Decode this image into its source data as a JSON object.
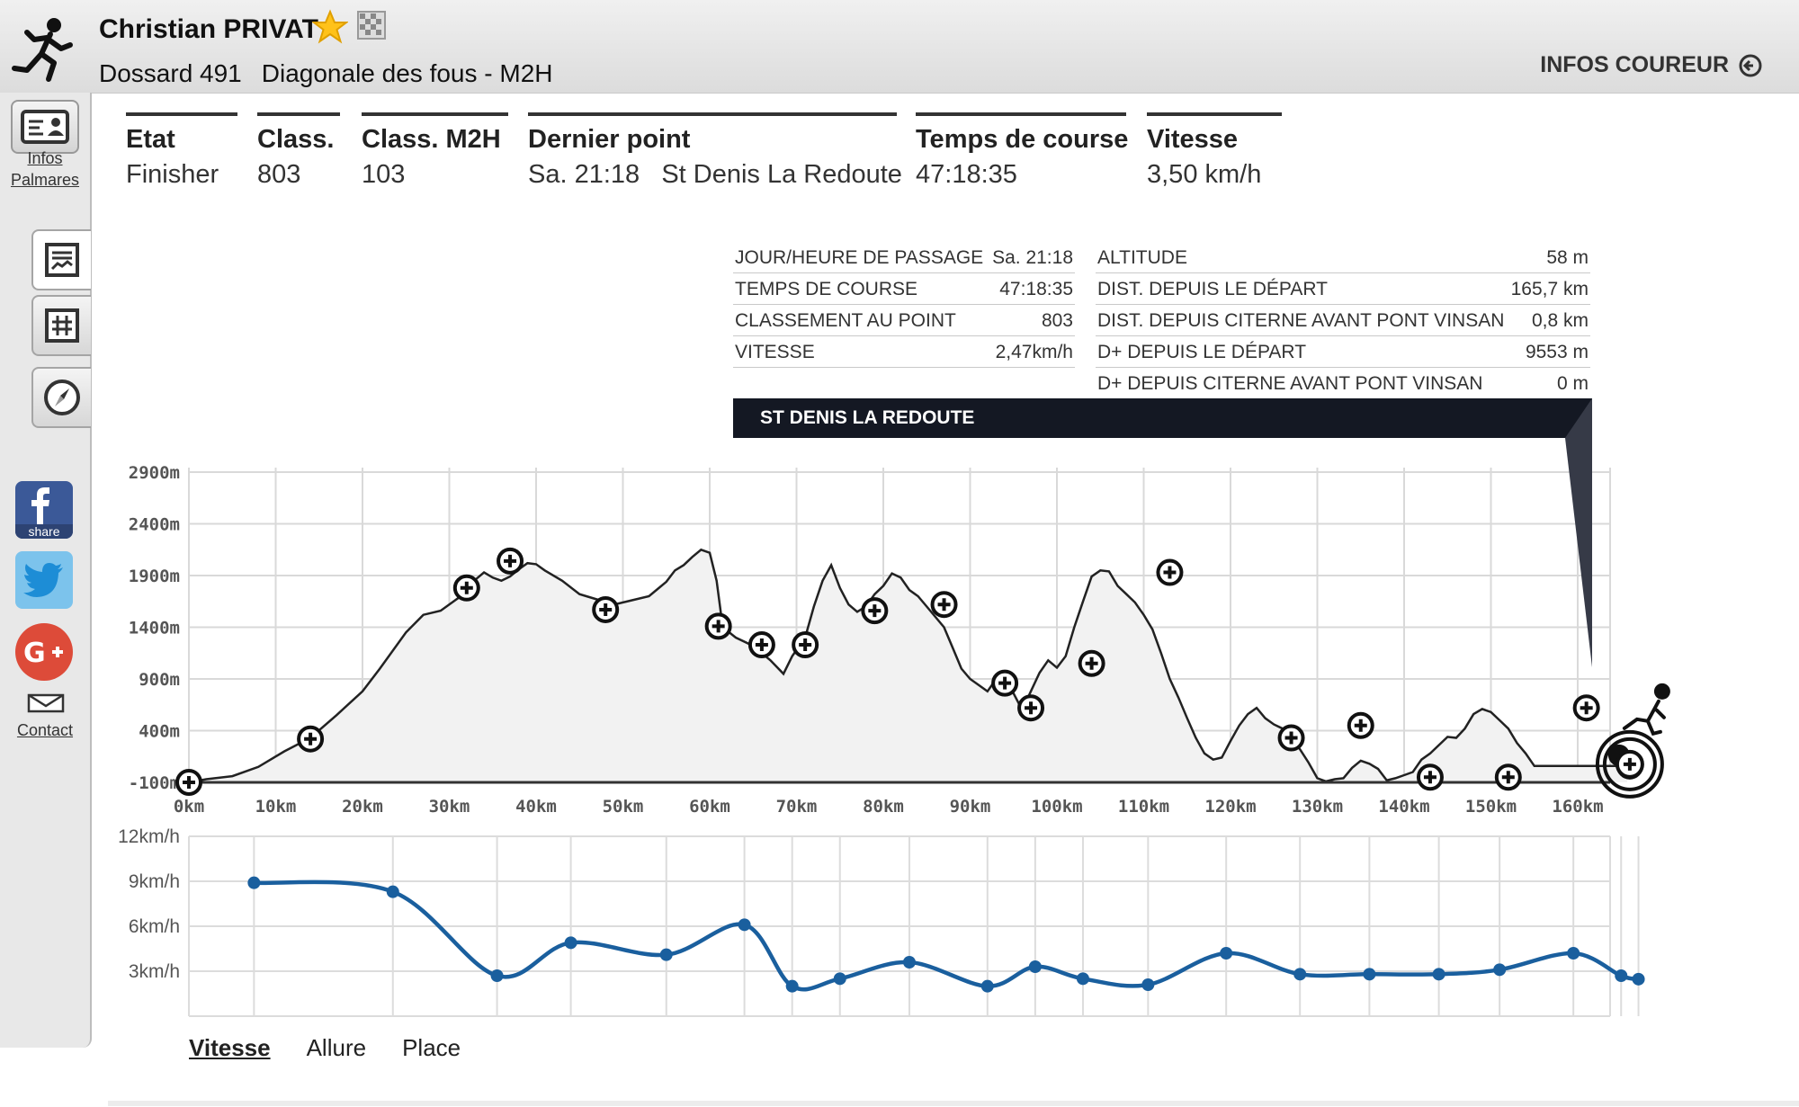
{
  "header": {
    "runner_name": "Christian PRIVAT",
    "bib": "Dossard 491",
    "race": "Diagonale des fous - M2H",
    "infos_coureur": "INFOS COUREUR"
  },
  "sidebar": {
    "infos_label": "Infos",
    "palmares_label": "Palmares",
    "contact_label": "Contact",
    "share_label": "share",
    "icons": [
      "id-card-icon",
      "profile-chart-icon",
      "grid-icon",
      "compass-icon",
      "facebook-icon",
      "twitter-icon",
      "google-plus-icon",
      "mail-icon"
    ]
  },
  "stats": [
    {
      "label": "Etat",
      "value": "Finisher"
    },
    {
      "label": "Class.",
      "value": "803"
    },
    {
      "label": "Class. M2H",
      "value": "103"
    },
    {
      "label": "Dernier point",
      "value": "Sa. 21:18   St Denis La Redoute"
    },
    {
      "label": "Temps de course",
      "value": "47:18:35"
    },
    {
      "label": "Vitesse",
      "value": "3,50 km/h"
    }
  ],
  "point_info": {
    "left": [
      {
        "label": "JOUR/HEURE DE PASSAGE",
        "value": "Sa. 21:18"
      },
      {
        "label": "TEMPS DE COURSE",
        "value": "47:18:35"
      },
      {
        "label": "CLASSEMENT AU POINT",
        "value": "803"
      },
      {
        "label": "VITESSE",
        "value": "2,47km/h"
      }
    ],
    "right": [
      {
        "label": "ALTITUDE",
        "value": "58 m"
      },
      {
        "label": "DIST. DEPUIS LE DÉPART",
        "value": "165,7 km"
      },
      {
        "label": "DIST. DEPUIS CITERNE AVANT PONT VINSAN",
        "value": "0,8 km"
      },
      {
        "label": "D+ DEPUIS LE DÉPART",
        "value": "9553 m"
      },
      {
        "label": "D+ DEPUIS CITERNE AVANT PONT VINSAN",
        "value": "0 m"
      }
    ],
    "point_name": "ST DENIS LA REDOUTE"
  },
  "tabs": [
    {
      "label": "Vitesse",
      "active": true
    },
    {
      "label": "Allure",
      "active": false
    },
    {
      "label": "Place",
      "active": false
    }
  ],
  "colors": {
    "speed_line": "#1a5f9e",
    "profile_line": "#222222",
    "banner": "#141823",
    "facebook": "#3b5998",
    "twitter": "#55acee",
    "google": "#dd4b39"
  },
  "chart_data": [
    {
      "type": "area",
      "x_unit": "km",
      "y_unit": "m",
      "xticks": [
        "0km",
        "10km",
        "20km",
        "30km",
        "40km",
        "50km",
        "60km",
        "70km",
        "80km",
        "90km",
        "100km",
        "110km",
        "120km",
        "130km",
        "140km",
        "150km",
        "160km"
      ],
      "yticks": [
        "-100m",
        "400m",
        "900m",
        "1400m",
        "1900m",
        "2400m",
        "2900m"
      ],
      "xlim": [
        0,
        166
      ],
      "ylim": [
        -100,
        2900
      ],
      "profile": [
        [
          0,
          -100
        ],
        [
          2,
          -70
        ],
        [
          5,
          -40
        ],
        [
          8,
          50
        ],
        [
          11,
          200
        ],
        [
          14,
          330
        ],
        [
          17,
          550
        ],
        [
          20,
          780
        ],
        [
          22,
          1000
        ],
        [
          25,
          1350
        ],
        [
          27,
          1520
        ],
        [
          29,
          1560
        ],
        [
          31,
          1680
        ],
        [
          33,
          1860
        ],
        [
          34,
          1930
        ],
        [
          35,
          1880
        ],
        [
          36,
          1850
        ],
        [
          37,
          1890
        ],
        [
          38,
          1960
        ],
        [
          39,
          2020
        ],
        [
          40,
          2010
        ],
        [
          41,
          1950
        ],
        [
          43,
          1850
        ],
        [
          45,
          1720
        ],
        [
          47,
          1670
        ],
        [
          49,
          1620
        ],
        [
          51,
          1660
        ],
        [
          53,
          1700
        ],
        [
          54,
          1770
        ],
        [
          55,
          1840
        ],
        [
          56,
          1950
        ],
        [
          57,
          2000
        ],
        [
          58,
          2080
        ],
        [
          59,
          2150
        ],
        [
          60,
          2120
        ],
        [
          60.8,
          1850
        ],
        [
          61.5,
          1400
        ],
        [
          63,
          1300
        ],
        [
          65,
          1220
        ],
        [
          67,
          1080
        ],
        [
          68.5,
          950
        ],
        [
          69.5,
          1120
        ],
        [
          71,
          1300
        ],
        [
          72,
          1600
        ],
        [
          73,
          1850
        ],
        [
          74,
          2000
        ],
        [
          75,
          1780
        ],
        [
          76,
          1620
        ],
        [
          77,
          1550
        ],
        [
          78,
          1600
        ],
        [
          79,
          1720
        ],
        [
          80,
          1800
        ],
        [
          81,
          1920
        ],
        [
          82,
          1880
        ],
        [
          83,
          1760
        ],
        [
          84,
          1700
        ],
        [
          85,
          1600
        ],
        [
          86,
          1500
        ],
        [
          87,
          1400
        ],
        [
          88,
          1200
        ],
        [
          89,
          1000
        ],
        [
          90,
          900
        ],
        [
          91,
          840
        ],
        [
          92,
          780
        ],
        [
          93,
          900
        ],
        [
          94,
          950
        ],
        [
          95,
          760
        ],
        [
          96,
          600
        ],
        [
          97,
          780
        ],
        [
          98,
          960
        ],
        [
          99,
          1080
        ],
        [
          100,
          1010
        ],
        [
          101,
          1120
        ],
        [
          102,
          1400
        ],
        [
          103,
          1650
        ],
        [
          104,
          1890
        ],
        [
          105,
          1950
        ],
        [
          106,
          1940
        ],
        [
          107,
          1800
        ],
        [
          108,
          1720
        ],
        [
          109,
          1640
        ],
        [
          110,
          1520
        ],
        [
          111,
          1380
        ],
        [
          112,
          1150
        ],
        [
          113,
          900
        ],
        [
          114,
          720
        ],
        [
          115,
          520
        ],
        [
          116,
          330
        ],
        [
          117,
          180
        ],
        [
          118,
          120
        ],
        [
          119,
          140
        ],
        [
          120,
          300
        ],
        [
          121,
          450
        ],
        [
          122,
          560
        ],
        [
          123,
          620
        ],
        [
          124,
          520
        ],
        [
          125,
          460
        ],
        [
          126,
          420
        ],
        [
          127,
          330
        ],
        [
          128,
          220
        ],
        [
          129,
          90
        ],
        [
          130,
          -60
        ],
        [
          131,
          -90
        ],
        [
          132,
          -70
        ],
        [
          133,
          -60
        ],
        [
          134,
          40
        ],
        [
          135,
          110
        ],
        [
          136,
          80
        ],
        [
          137,
          30
        ],
        [
          138,
          -80
        ],
        [
          139,
          -60
        ],
        [
          140,
          -30
        ],
        [
          141,
          0
        ],
        [
          142,
          120
        ],
        [
          143,
          180
        ],
        [
          144,
          260
        ],
        [
          145,
          340
        ],
        [
          146,
          330
        ],
        [
          147,
          420
        ],
        [
          148,
          560
        ],
        [
          149,
          610
        ],
        [
          150,
          580
        ],
        [
          151,
          500
        ],
        [
          152,
          420
        ],
        [
          153,
          280
        ],
        [
          154,
          180
        ],
        [
          155,
          58
        ],
        [
          165.7,
          58
        ]
      ],
      "checkpoints": [
        [
          0,
          -100
        ],
        [
          14,
          320
        ],
        [
          32,
          1780
        ],
        [
          37,
          2040
        ],
        [
          48,
          1570
        ],
        [
          61,
          1410
        ],
        [
          66,
          1230
        ],
        [
          71,
          1230
        ],
        [
          79,
          1560
        ],
        [
          87,
          1620
        ],
        [
          94,
          860
        ],
        [
          97,
          620
        ],
        [
          104,
          1050
        ],
        [
          113,
          1930
        ],
        [
          127,
          330
        ],
        [
          135,
          450
        ],
        [
          143,
          -50
        ],
        [
          152,
          -50
        ],
        [
          161,
          620
        ],
        [
          166,
          58
        ]
      ]
    },
    {
      "type": "line",
      "x_unit": "km",
      "y_unit": "km/h",
      "yticks": [
        "12km/h",
        "9km/h",
        "6km/h",
        "3km/h"
      ],
      "ylim": [
        0,
        12
      ],
      "points": [
        [
          7.5,
          8.9
        ],
        [
          23.5,
          8.3
        ],
        [
          35.5,
          2.7
        ],
        [
          44,
          4.9
        ],
        [
          55,
          4.1
        ],
        [
          64,
          6.1
        ],
        [
          69.5,
          2.0
        ],
        [
          75,
          2.5
        ],
        [
          83,
          3.6
        ],
        [
          92,
          2.0
        ],
        [
          97.5,
          3.3
        ],
        [
          103,
          2.5
        ],
        [
          110.5,
          2.1
        ],
        [
          119.5,
          4.2
        ],
        [
          128,
          2.8
        ],
        [
          136,
          2.8
        ],
        [
          144,
          2.8
        ],
        [
          151,
          3.1
        ],
        [
          159.5,
          4.2
        ],
        [
          165,
          2.7
        ],
        [
          167,
          2.47
        ]
      ]
    }
  ]
}
